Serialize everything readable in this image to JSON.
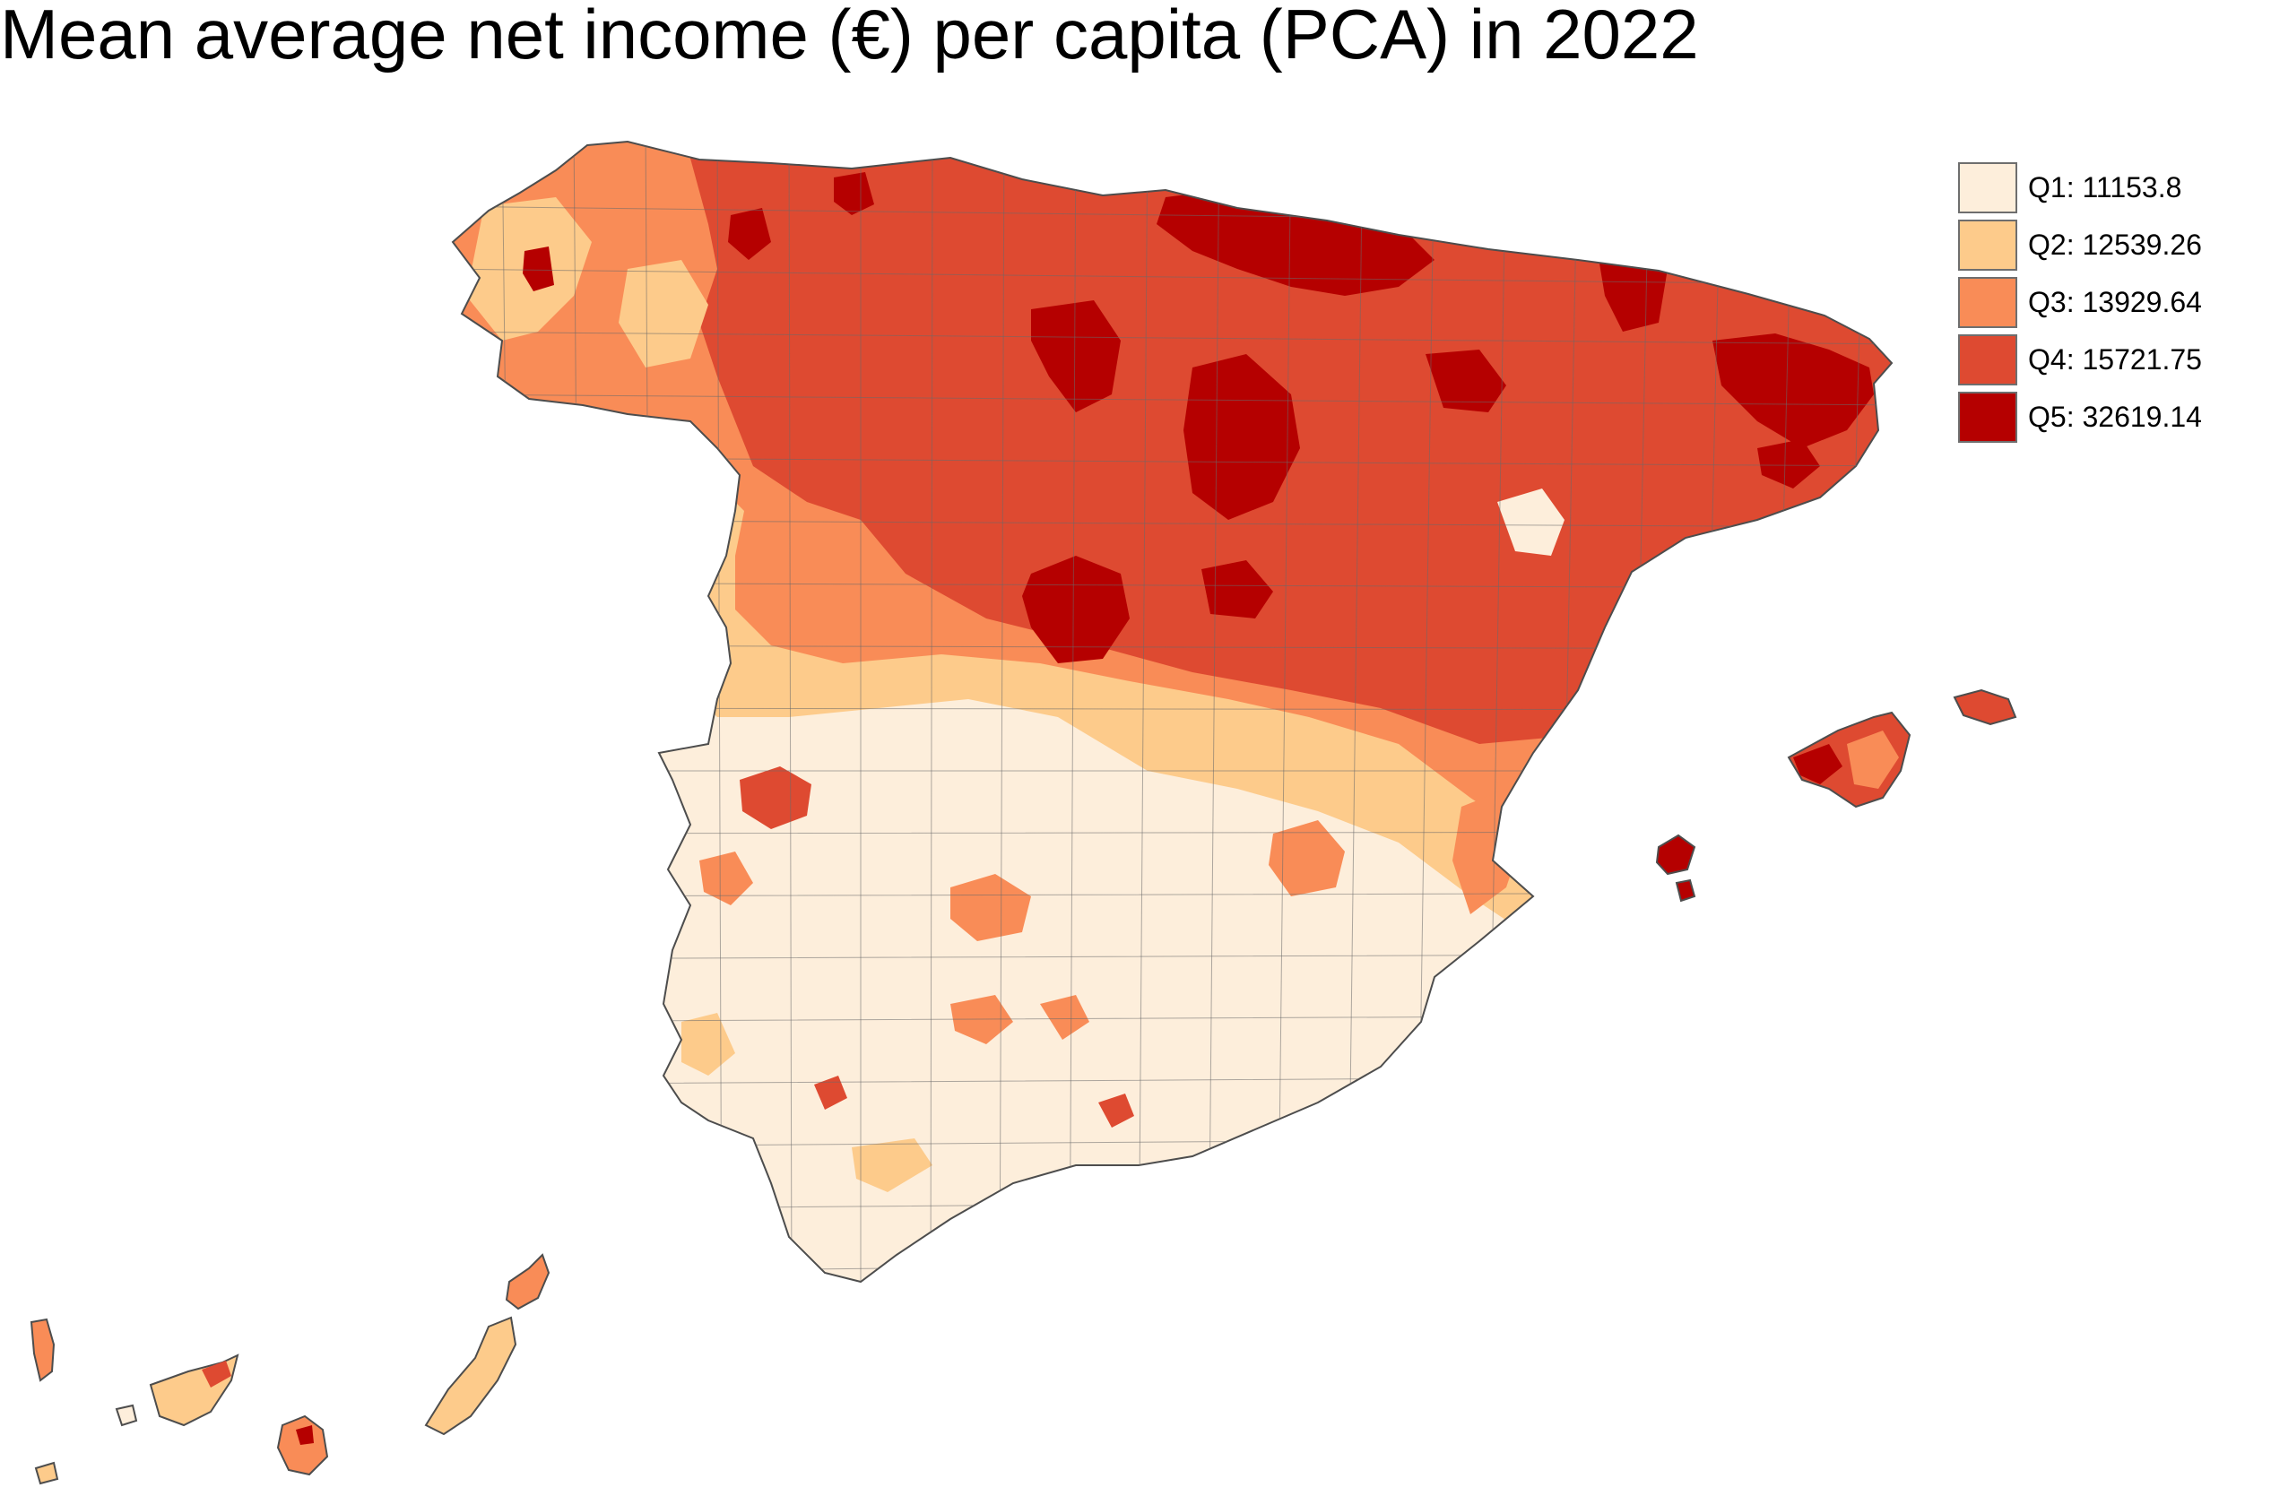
{
  "title": "Mean average net income (€) per capita (PCA) in 2022",
  "legend": {
    "items": [
      {
        "label": "Q1: 11153.8",
        "color": "#fdeedb"
      },
      {
        "label": "Q2: 12539.26",
        "color": "#fdcb8b"
      },
      {
        "label": "Q3: 13929.64",
        "color": "#f98c57"
      },
      {
        "label": "Q4: 15721.75",
        "color": "#de4a31"
      },
      {
        "label": "Q5: 32619.14",
        "color": "#b50000"
      }
    ]
  },
  "map": {
    "region": "Spain (peninsula, Balearic Islands, Canary Islands)",
    "unit_level": "municipalities",
    "classes": [
      "Q1",
      "Q2",
      "Q3",
      "Q4",
      "Q5"
    ],
    "colors": {
      "Q1": "#fdeedb",
      "Q2": "#fdcb8b",
      "Q3": "#f98c57",
      "Q4": "#de4a31",
      "Q5": "#b50000",
      "border": "#4d4d4d"
    }
  }
}
